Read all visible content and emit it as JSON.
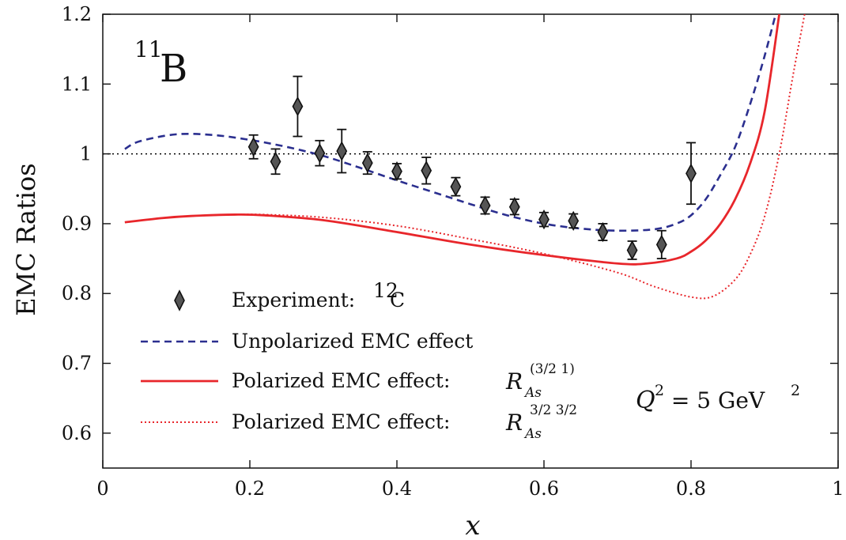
{
  "chart_data": {
    "type": "line",
    "xlabel": "x",
    "ylabel": "EMC Ratios",
    "xlim": [
      0,
      1
    ],
    "ylim": [
      0.55,
      1.2
    ],
    "x_ticks": [
      "0",
      "0.2",
      "0.4",
      "0.6",
      "0.8",
      "1"
    ],
    "y_ticks": [
      "0.6",
      "0.7",
      "0.8",
      "0.9",
      "1",
      "1.1",
      "1.2"
    ],
    "reference_line": {
      "y": 1,
      "style": "dotted",
      "color": "#000000"
    },
    "nucleus_label": {
      "mass_number": "11",
      "symbol": "B"
    },
    "kinematics_label": {
      "lhs": "Q",
      "lhs_exp": "2",
      "eq": " = 5 GeV",
      "rhs_exp": "2"
    },
    "series": [
      {
        "name": "Unpolarized EMC effect",
        "style": "dashed",
        "color": "#2b2f8f",
        "x": [
          0.03,
          0.05,
          0.1,
          0.15,
          0.2,
          0.25,
          0.3,
          0.35,
          0.4,
          0.45,
          0.5,
          0.55,
          0.6,
          0.65,
          0.7,
          0.75,
          0.78,
          0.8,
          0.82,
          0.84,
          0.86,
          0.88,
          0.9,
          0.92
        ],
        "y": [
          1.007,
          1.018,
          1.028,
          1.027,
          1.02,
          1.01,
          0.997,
          0.98,
          0.962,
          0.945,
          0.928,
          0.912,
          0.9,
          0.893,
          0.89,
          0.892,
          0.9,
          0.912,
          0.935,
          0.97,
          1.01,
          1.07,
          1.14,
          1.22
        ]
      },
      {
        "name": "Polarized EMC effect:",
        "label_math": {
          "base": "R",
          "sub": "As",
          "sup": "(3/2 1)"
        },
        "style": "solid",
        "color": "#e8262b",
        "x": [
          0.03,
          0.08,
          0.12,
          0.18,
          0.22,
          0.3,
          0.4,
          0.5,
          0.6,
          0.7,
          0.74,
          0.78,
          0.8,
          0.82,
          0.84,
          0.86,
          0.88,
          0.9,
          0.92
        ],
        "y": [
          0.902,
          0.908,
          0.911,
          0.913,
          0.912,
          0.905,
          0.888,
          0.87,
          0.855,
          0.843,
          0.843,
          0.85,
          0.86,
          0.876,
          0.9,
          0.935,
          0.985,
          1.06,
          1.2
        ]
      },
      {
        "name": "Polarized EMC effect:",
        "label_math": {
          "base": "R",
          "sub": "As",
          "sup": "3/2 3/2"
        },
        "style": "dotted",
        "color": "#e8262b",
        "x": [
          0.03,
          0.08,
          0.12,
          0.18,
          0.22,
          0.3,
          0.4,
          0.5,
          0.6,
          0.7,
          0.75,
          0.8,
          0.83,
          0.86,
          0.88,
          0.9,
          0.92,
          0.94,
          0.96
        ],
        "y": [
          0.902,
          0.908,
          0.911,
          0.913,
          0.913,
          0.909,
          0.897,
          0.878,
          0.857,
          0.83,
          0.81,
          0.795,
          0.796,
          0.82,
          0.855,
          0.91,
          1.0,
          1.12,
          1.23
        ]
      },
      {
        "name": "Experiment:",
        "label_math": {
          "sup": "12",
          "base": "C"
        },
        "type": "scatter",
        "marker": "diamond",
        "color": "#555555",
        "points": [
          {
            "x": 0.205,
            "y": 1.01,
            "err": 0.017
          },
          {
            "x": 0.235,
            "y": 0.989,
            "err": 0.018
          },
          {
            "x": 0.265,
            "y": 1.068,
            "err": 0.043
          },
          {
            "x": 0.295,
            "y": 1.001,
            "err": 0.018
          },
          {
            "x": 0.325,
            "y": 1.004,
            "err": 0.031
          },
          {
            "x": 0.36,
            "y": 0.987,
            "err": 0.016
          },
          {
            "x": 0.4,
            "y": 0.975,
            "err": 0.011
          },
          {
            "x": 0.44,
            "y": 0.976,
            "err": 0.019
          },
          {
            "x": 0.48,
            "y": 0.953,
            "err": 0.013
          },
          {
            "x": 0.52,
            "y": 0.926,
            "err": 0.012
          },
          {
            "x": 0.56,
            "y": 0.924,
            "err": 0.011
          },
          {
            "x": 0.6,
            "y": 0.906,
            "err": 0.01
          },
          {
            "x": 0.64,
            "y": 0.904,
            "err": 0.01
          },
          {
            "x": 0.68,
            "y": 0.888,
            "err": 0.012
          },
          {
            "x": 0.72,
            "y": 0.862,
            "err": 0.013
          },
          {
            "x": 0.76,
            "y": 0.87,
            "err": 0.02
          },
          {
            "x": 0.8,
            "y": 0.972,
            "err": 0.044
          }
        ]
      }
    ],
    "legend_order": [
      3,
      0,
      1,
      2
    ],
    "legend_position": "lower-left"
  }
}
